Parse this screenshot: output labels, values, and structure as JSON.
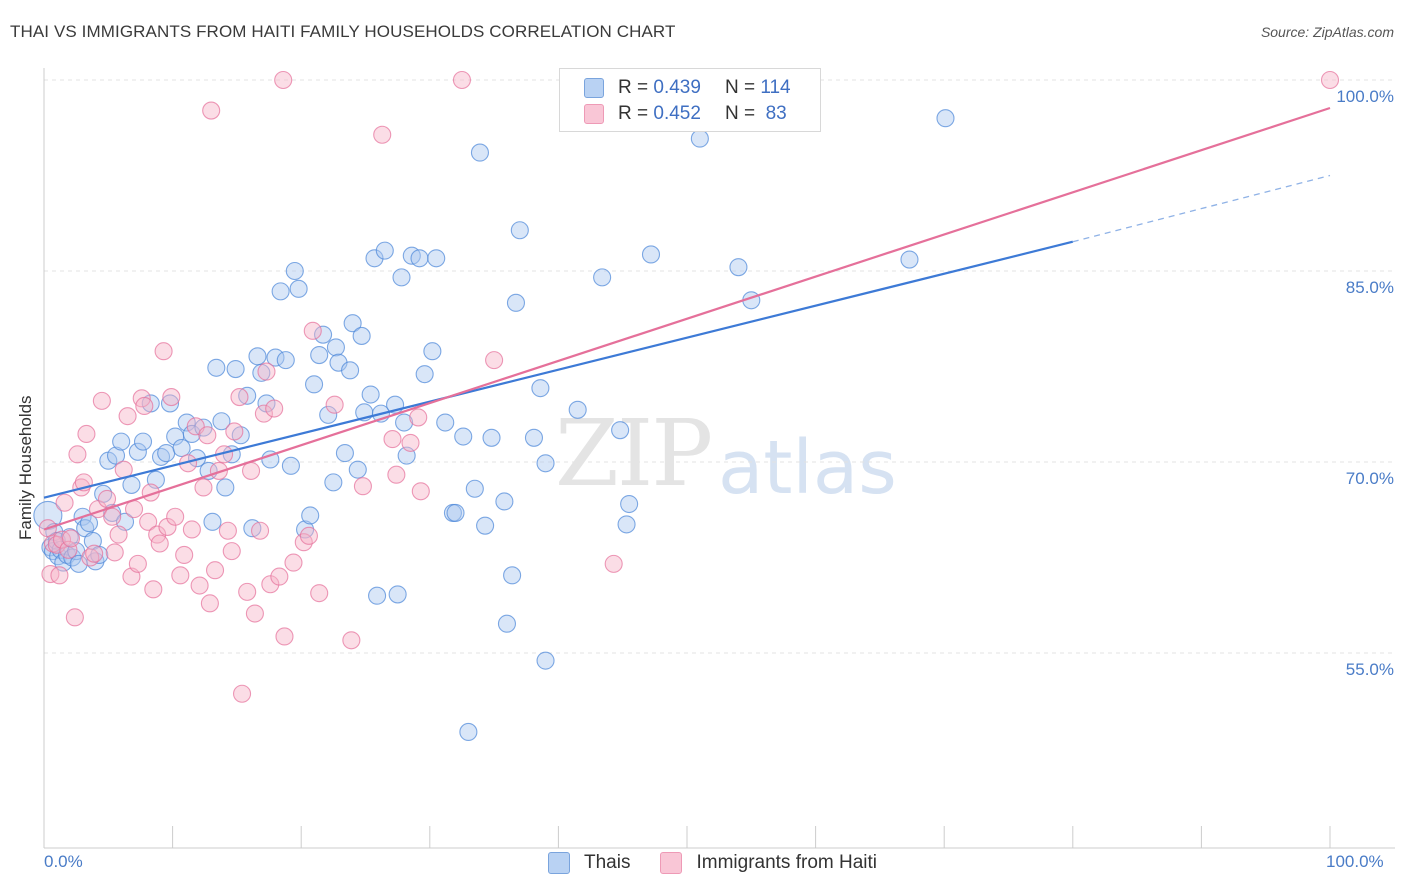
{
  "title": "THAI VS IMMIGRANTS FROM HAITI FAMILY HOUSEHOLDS CORRELATION CHART",
  "source": "Source: ZipAtlas.com",
  "watermark": {
    "zip": "ZIP",
    "atlas": "atlas"
  },
  "colors": {
    "blue": "#4a86d8",
    "blue_fill": "#aac8ef",
    "pink": "#e56f9a",
    "pink_fill": "#f6b3c8",
    "tick_text": "#4a7cc7"
  },
  "legend": {
    "r_label": "R =",
    "n_label": "N =",
    "series": [
      {
        "r": "0.439",
        "n": "114"
      },
      {
        "r": "0.452",
        "n": "83"
      }
    ]
  },
  "chart_data": {
    "type": "scatter",
    "title": "THAI VS IMMIGRANTS FROM HAITI FAMILY HOUSEHOLDS CORRELATION CHART",
    "xlabel": "",
    "ylabel": "Family Households",
    "xlim": [
      0,
      100
    ],
    "ylim": [
      40,
      102
    ],
    "x_tick_labels": [
      "0.0%",
      "100.0%"
    ],
    "y_ticks": [
      55,
      70,
      85,
      100
    ],
    "y_tick_labels": [
      "55.0%",
      "70.0%",
      "85.0%",
      "100.0%"
    ],
    "grid": true,
    "legend_position": "bottom",
    "series": [
      {
        "name": "Thais",
        "r": 0.439,
        "n": 114,
        "trend": {
          "x0": 0,
          "y0": 67.2,
          "x1": 80,
          "y1": 87.3,
          "dashed_to_x": 100,
          "dashed_to_y": 92.5
        },
        "points": [
          [
            0.3,
            65.8
          ],
          [
            0.5,
            63.3
          ],
          [
            0.7,
            63.0
          ],
          [
            0.8,
            64.5
          ],
          [
            1.0,
            63.8
          ],
          [
            1.1,
            62.6
          ],
          [
            1.3,
            63.1
          ],
          [
            1.5,
            62.1
          ],
          [
            1.8,
            62.7
          ],
          [
            2.0,
            64.1
          ],
          [
            2.2,
            62.5
          ],
          [
            2.5,
            63.0
          ],
          [
            2.7,
            62.0
          ],
          [
            3.0,
            65.7
          ],
          [
            3.2,
            64.8
          ],
          [
            3.5,
            65.2
          ],
          [
            3.8,
            63.8
          ],
          [
            4.0,
            62.2
          ],
          [
            4.3,
            62.7
          ],
          [
            4.6,
            67.5
          ],
          [
            5.0,
            70.1
          ],
          [
            5.3,
            66.0
          ],
          [
            5.6,
            70.5
          ],
          [
            6.0,
            71.6
          ],
          [
            6.3,
            65.3
          ],
          [
            6.8,
            68.2
          ],
          [
            7.3,
            70.8
          ],
          [
            7.7,
            71.6
          ],
          [
            8.3,
            74.6
          ],
          [
            8.7,
            68.6
          ],
          [
            9.1,
            70.4
          ],
          [
            9.5,
            70.7
          ],
          [
            9.8,
            74.6
          ],
          [
            10.2,
            72.0
          ],
          [
            10.7,
            71.1
          ],
          [
            11.1,
            73.1
          ],
          [
            11.5,
            72.2
          ],
          [
            11.9,
            70.3
          ],
          [
            12.4,
            72.7
          ],
          [
            12.8,
            69.3
          ],
          [
            13.1,
            65.3
          ],
          [
            13.4,
            77.4
          ],
          [
            13.8,
            73.2
          ],
          [
            14.1,
            68.0
          ],
          [
            14.6,
            70.6
          ],
          [
            14.9,
            77.3
          ],
          [
            15.3,
            72.1
          ],
          [
            15.8,
            75.2
          ],
          [
            16.2,
            64.8
          ],
          [
            16.6,
            78.3
          ],
          [
            16.9,
            77.0
          ],
          [
            17.3,
            74.6
          ],
          [
            17.6,
            70.2
          ],
          [
            18.0,
            78.2
          ],
          [
            18.4,
            83.4
          ],
          [
            18.8,
            78.0
          ],
          [
            19.2,
            69.7
          ],
          [
            19.5,
            85.0
          ],
          [
            19.8,
            83.6
          ],
          [
            20.3,
            64.7
          ],
          [
            20.7,
            65.8
          ],
          [
            21.0,
            76.1
          ],
          [
            21.4,
            78.4
          ],
          [
            21.7,
            80.0
          ],
          [
            22.1,
            73.7
          ],
          [
            22.5,
            68.4
          ],
          [
            22.7,
            79.0
          ],
          [
            22.9,
            77.8
          ],
          [
            23.4,
            70.7
          ],
          [
            23.8,
            77.2
          ],
          [
            24.0,
            80.9
          ],
          [
            24.4,
            69.4
          ],
          [
            24.7,
            79.9
          ],
          [
            24.9,
            73.9
          ],
          [
            25.4,
            75.3
          ],
          [
            25.7,
            86.0
          ],
          [
            25.9,
            59.5
          ],
          [
            26.2,
            73.8
          ],
          [
            26.5,
            86.6
          ],
          [
            27.3,
            74.5
          ],
          [
            27.5,
            59.6
          ],
          [
            27.8,
            84.5
          ],
          [
            28.0,
            73.1
          ],
          [
            28.2,
            70.5
          ],
          [
            28.6,
            86.2
          ],
          [
            29.2,
            86.0
          ],
          [
            29.6,
            76.9
          ],
          [
            30.2,
            78.7
          ],
          [
            30.5,
            86.0
          ],
          [
            31.2,
            73.1
          ],
          [
            31.8,
            66.0
          ],
          [
            32.0,
            66.0
          ],
          [
            32.6,
            72.0
          ],
          [
            33.5,
            67.9
          ],
          [
            33.9,
            94.3
          ],
          [
            34.3,
            65.0
          ],
          [
            34.8,
            71.9
          ],
          [
            35.8,
            66.9
          ],
          [
            36.0,
            57.3
          ],
          [
            36.4,
            61.1
          ],
          [
            36.7,
            82.5
          ],
          [
            37.0,
            88.2
          ],
          [
            38.1,
            71.9
          ],
          [
            38.6,
            75.8
          ],
          [
            39.0,
            54.4
          ],
          [
            39.0,
            69.9
          ],
          [
            41.5,
            74.1
          ],
          [
            43.4,
            84.5
          ],
          [
            44.8,
            72.5
          ],
          [
            45.3,
            65.1
          ],
          [
            45.5,
            66.7
          ],
          [
            47.2,
            86.3
          ],
          [
            51.0,
            95.4
          ],
          [
            54.0,
            85.3
          ],
          [
            55.0,
            82.7
          ],
          [
            67.3,
            85.9
          ],
          [
            70.1,
            97.0
          ],
          [
            33.0,
            48.8
          ]
        ]
      },
      {
        "name": "Immigrants from Haiti",
        "r": 0.452,
        "n": 83,
        "trend": {
          "x0": 0,
          "y0": 64.7,
          "x1": 100,
          "y1": 97.8
        },
        "points": [
          [
            0.3,
            64.8
          ],
          [
            0.5,
            61.2
          ],
          [
            0.7,
            63.6
          ],
          [
            1.0,
            63.5
          ],
          [
            1.2,
            61.1
          ],
          [
            1.4,
            63.9
          ],
          [
            1.6,
            66.8
          ],
          [
            1.9,
            63.1
          ],
          [
            2.1,
            64.0
          ],
          [
            2.4,
            57.8
          ],
          [
            2.6,
            70.6
          ],
          [
            2.9,
            68.0
          ],
          [
            3.1,
            68.4
          ],
          [
            3.3,
            72.2
          ],
          [
            3.6,
            62.5
          ],
          [
            3.9,
            62.8
          ],
          [
            4.2,
            66.3
          ],
          [
            4.5,
            74.8
          ],
          [
            4.9,
            67.1
          ],
          [
            5.3,
            65.7
          ],
          [
            5.5,
            62.9
          ],
          [
            5.8,
            64.3
          ],
          [
            6.2,
            69.4
          ],
          [
            6.5,
            73.6
          ],
          [
            6.8,
            61.0
          ],
          [
            7.0,
            66.3
          ],
          [
            7.3,
            62.0
          ],
          [
            7.6,
            75.0
          ],
          [
            7.8,
            74.4
          ],
          [
            8.1,
            65.3
          ],
          [
            8.3,
            67.6
          ],
          [
            8.5,
            60.0
          ],
          [
            8.8,
            64.3
          ],
          [
            9.0,
            63.6
          ],
          [
            9.3,
            78.7
          ],
          [
            9.6,
            64.9
          ],
          [
            9.9,
            75.1
          ],
          [
            10.2,
            65.7
          ],
          [
            10.6,
            61.1
          ],
          [
            10.9,
            62.7
          ],
          [
            11.2,
            69.9
          ],
          [
            11.5,
            64.7
          ],
          [
            11.8,
            72.8
          ],
          [
            12.1,
            60.3
          ],
          [
            12.4,
            68.0
          ],
          [
            12.7,
            72.1
          ],
          [
            12.9,
            58.9
          ],
          [
            13.3,
            61.5
          ],
          [
            13.6,
            69.3
          ],
          [
            14.0,
            70.6
          ],
          [
            14.3,
            64.6
          ],
          [
            14.6,
            63.0
          ],
          [
            14.8,
            72.4
          ],
          [
            15.2,
            75.1
          ],
          [
            15.4,
            51.8
          ],
          [
            15.8,
            59.8
          ],
          [
            16.1,
            69.3
          ],
          [
            16.4,
            58.1
          ],
          [
            16.8,
            64.6
          ],
          [
            17.1,
            73.8
          ],
          [
            17.3,
            77.1
          ],
          [
            17.6,
            60.4
          ],
          [
            17.9,
            74.2
          ],
          [
            18.3,
            61.0
          ],
          [
            18.7,
            56.3
          ],
          [
            19.4,
            62.1
          ],
          [
            20.2,
            63.7
          ],
          [
            20.6,
            64.2
          ],
          [
            20.9,
            80.3
          ],
          [
            21.4,
            59.7
          ],
          [
            22.6,
            74.5
          ],
          [
            23.9,
            56.0
          ],
          [
            24.8,
            68.1
          ],
          [
            26.3,
            95.7
          ],
          [
            27.1,
            71.8
          ],
          [
            27.4,
            69.0
          ],
          [
            28.5,
            71.5
          ],
          [
            29.1,
            73.5
          ],
          [
            29.3,
            67.7
          ],
          [
            35.0,
            78.0
          ],
          [
            44.3,
            62.0
          ],
          [
            13.0,
            97.6
          ],
          [
            18.6,
            100.0
          ],
          [
            32.5,
            100.0
          ],
          [
            100.0,
            100.0
          ]
        ]
      }
    ]
  }
}
